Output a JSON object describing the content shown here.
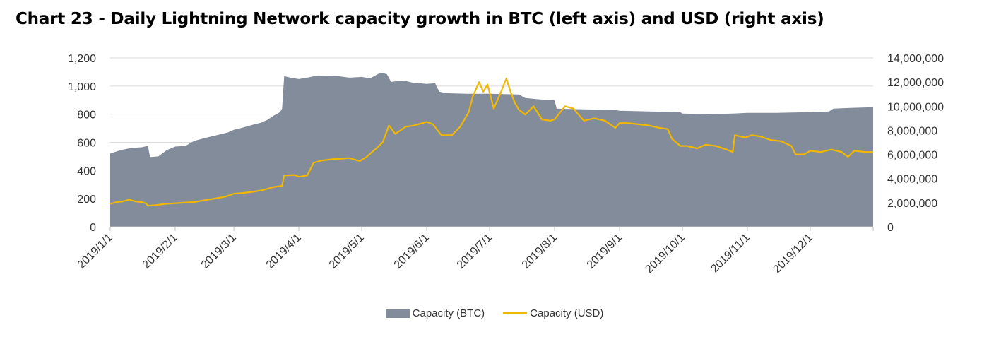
{
  "chart_data": {
    "type": "area",
    "title": "Chart 23 - Daily Lightning Network capacity growth in BTC (left axis) and USD (right axis)",
    "x_labels": [
      "2019/1/1",
      "2019/2/1",
      "2019/3/1",
      "2019/4/1",
      "2019/5/1",
      "2019/6/1",
      "2019/7/1",
      "2019/8/1",
      "2019/9/1",
      "2019/10/1",
      "2019/11/1",
      "2019/12/1"
    ],
    "x_range": [
      "2019/1/1",
      "2019/12/31"
    ],
    "y_left": {
      "range": [
        0,
        1200
      ],
      "ticks": [
        "0",
        "200",
        "400",
        "600",
        "800",
        "1,000",
        "1,200"
      ]
    },
    "y_right": {
      "range": [
        0,
        14000000
      ],
      "ticks": [
        "0",
        "2,000,000",
        "4,000,000",
        "6,000,000",
        "8,000,000",
        "10,000,000",
        "12,000,000",
        "14,000,000"
      ]
    },
    "grid": true,
    "legend": "bottom",
    "series": [
      {
        "name": "Capacity (BTC)",
        "kind": "area",
        "axis": "left",
        "color": "#838c9b",
        "points": [
          [
            "2019/1/1",
            520
          ],
          [
            "2019/1/6",
            545
          ],
          [
            "2019/1/11",
            560
          ],
          [
            "2019/1/16",
            565
          ],
          [
            "2019/1/19",
            575
          ],
          [
            "2019/1/20",
            495
          ],
          [
            "2019/1/24",
            500
          ],
          [
            "2019/1/28",
            545
          ],
          [
            "2019/2/1",
            570
          ],
          [
            "2019/2/6",
            575
          ],
          [
            "2019/2/10",
            610
          ],
          [
            "2019/2/15",
            630
          ],
          [
            "2019/2/22",
            655
          ],
          [
            "2019/2/26",
            670
          ],
          [
            "2019/3/1",
            690
          ],
          [
            "2019/3/4",
            700
          ],
          [
            "2019/3/10",
            725
          ],
          [
            "2019/3/14",
            740
          ],
          [
            "2019/3/17",
            760
          ],
          [
            "2019/3/20",
            790
          ],
          [
            "2019/3/23",
            815
          ],
          [
            "2019/3/24",
            840
          ],
          [
            "2019/3/25",
            1070
          ],
          [
            "2019/3/28",
            1060
          ],
          [
            "2019/4/1",
            1050
          ],
          [
            "2019/4/5",
            1060
          ],
          [
            "2019/4/10",
            1075
          ],
          [
            "2019/4/20",
            1070
          ],
          [
            "2019/4/25",
            1060
          ],
          [
            "2019/5/1",
            1065
          ],
          [
            "2019/5/5",
            1055
          ],
          [
            "2019/5/10",
            1095
          ],
          [
            "2019/5/13",
            1085
          ],
          [
            "2019/5/15",
            1030
          ],
          [
            "2019/5/21",
            1040
          ],
          [
            "2019/5/25",
            1025
          ],
          [
            "2019/6/1",
            1015
          ],
          [
            "2019/6/5",
            1020
          ],
          [
            "2019/6/7",
            960
          ],
          [
            "2019/6/10",
            950
          ],
          [
            "2019/6/20",
            945
          ],
          [
            "2019/7/1",
            945
          ],
          [
            "2019/7/15",
            940
          ],
          [
            "2019/7/18",
            915
          ],
          [
            "2019/7/25",
            905
          ],
          [
            "2019/8/1",
            900
          ],
          [
            "2019/8/2",
            840
          ],
          [
            "2019/8/15",
            835
          ],
          [
            "2019/8/30",
            830
          ],
          [
            "2019/9/1",
            825
          ],
          [
            "2019/9/15",
            820
          ],
          [
            "2019/9/30",
            815
          ],
          [
            "2019/10/1",
            805
          ],
          [
            "2019/10/15",
            800
          ],
          [
            "2019/10/25",
            805
          ],
          [
            "2019/11/1",
            810
          ],
          [
            "2019/11/15",
            810
          ],
          [
            "2019/11/30",
            815
          ],
          [
            "2019/12/1",
            815
          ],
          [
            "2019/12/10",
            820
          ],
          [
            "2019/12/12",
            840
          ],
          [
            "2019/12/20",
            845
          ],
          [
            "2019/12/31",
            850
          ]
        ]
      },
      {
        "name": "Capacity (USD)",
        "kind": "line",
        "axis": "right",
        "color": "#f2b800",
        "points": [
          [
            "2019/1/1",
            1900000
          ],
          [
            "2019/1/4",
            2050000
          ],
          [
            "2019/1/7",
            2100000
          ],
          [
            "2019/1/10",
            2250000
          ],
          [
            "2019/1/13",
            2100000
          ],
          [
            "2019/1/16",
            2050000
          ],
          [
            "2019/1/18",
            1950000
          ],
          [
            "2019/1/19",
            1750000
          ],
          [
            "2019/1/23",
            1800000
          ],
          [
            "2019/1/27",
            1900000
          ],
          [
            "2019/2/1",
            1950000
          ],
          [
            "2019/2/5",
            2000000
          ],
          [
            "2019/2/10",
            2050000
          ],
          [
            "2019/2/15",
            2200000
          ],
          [
            "2019/2/20",
            2350000
          ],
          [
            "2019/2/25",
            2500000
          ],
          [
            "2019/3/1",
            2750000
          ],
          [
            "2019/3/5",
            2800000
          ],
          [
            "2019/3/10",
            2900000
          ],
          [
            "2019/3/15",
            3050000
          ],
          [
            "2019/3/20",
            3300000
          ],
          [
            "2019/3/24",
            3400000
          ],
          [
            "2019/3/25",
            4250000
          ],
          [
            "2019/3/30",
            4300000
          ],
          [
            "2019/4/1",
            4150000
          ],
          [
            "2019/4/5",
            4250000
          ],
          [
            "2019/4/8",
            5300000
          ],
          [
            "2019/4/12",
            5500000
          ],
          [
            "2019/4/17",
            5600000
          ],
          [
            "2019/4/22",
            5650000
          ],
          [
            "2019/4/25",
            5700000
          ],
          [
            "2019/4/30",
            5450000
          ],
          [
            "2019/5/3",
            5750000
          ],
          [
            "2019/5/8",
            6500000
          ],
          [
            "2019/5/11",
            7000000
          ],
          [
            "2019/5/14",
            8400000
          ],
          [
            "2019/5/17",
            7700000
          ],
          [
            "2019/5/22",
            8300000
          ],
          [
            "2019/5/26",
            8400000
          ],
          [
            "2019/5/30",
            8600000
          ],
          [
            "2019/6/1",
            8700000
          ],
          [
            "2019/6/4",
            8500000
          ],
          [
            "2019/6/8",
            7600000
          ],
          [
            "2019/6/13",
            7600000
          ],
          [
            "2019/6/17",
            8300000
          ],
          [
            "2019/6/21",
            9500000
          ],
          [
            "2019/6/23",
            10800000
          ],
          [
            "2019/6/26",
            12000000
          ],
          [
            "2019/6/28",
            11200000
          ],
          [
            "2019/6/30",
            11800000
          ],
          [
            "2019/7/3",
            9800000
          ],
          [
            "2019/7/6",
            11000000
          ],
          [
            "2019/7/9",
            12300000
          ],
          [
            "2019/7/11",
            11200000
          ],
          [
            "2019/7/13",
            10300000
          ],
          [
            "2019/7/15",
            9700000
          ],
          [
            "2019/7/18",
            9300000
          ],
          [
            "2019/7/22",
            10000000
          ],
          [
            "2019/7/26",
            8900000
          ],
          [
            "2019/7/30",
            8800000
          ],
          [
            "2019/8/1",
            8900000
          ],
          [
            "2019/8/6",
            10000000
          ],
          [
            "2019/8/10",
            9800000
          ],
          [
            "2019/8/15",
            8800000
          ],
          [
            "2019/8/20",
            9000000
          ],
          [
            "2019/8/25",
            8800000
          ],
          [
            "2019/8/30",
            8200000
          ],
          [
            "2019/9/1",
            8600000
          ],
          [
            "2019/9/5",
            8600000
          ],
          [
            "2019/9/10",
            8500000
          ],
          [
            "2019/9/15",
            8400000
          ],
          [
            "2019/9/20",
            8200000
          ],
          [
            "2019/9/24",
            8100000
          ],
          [
            "2019/9/26",
            7300000
          ],
          [
            "2019/9/30",
            6700000
          ],
          [
            "2019/10/3",
            6700000
          ],
          [
            "2019/10/8",
            6500000
          ],
          [
            "2019/10/12",
            6800000
          ],
          [
            "2019/10/17",
            6700000
          ],
          [
            "2019/10/22",
            6400000
          ],
          [
            "2019/10/25",
            6200000
          ],
          [
            "2019/10/26",
            7600000
          ],
          [
            "2019/10/31",
            7400000
          ],
          [
            "2019/11/3",
            7600000
          ],
          [
            "2019/11/7",
            7500000
          ],
          [
            "2019/11/12",
            7200000
          ],
          [
            "2019/11/17",
            7100000
          ],
          [
            "2019/11/22",
            6700000
          ],
          [
            "2019/11/24",
            6000000
          ],
          [
            "2019/11/28",
            6000000
          ],
          [
            "2019/12/1",
            6300000
          ],
          [
            "2019/12/6",
            6200000
          ],
          [
            "2019/12/11",
            6400000
          ],
          [
            "2019/12/16",
            6200000
          ],
          [
            "2019/12/19",
            5800000
          ],
          [
            "2019/12/22",
            6300000
          ],
          [
            "2019/12/27",
            6200000
          ],
          [
            "2019/12/31",
            6200000
          ]
        ]
      }
    ]
  }
}
